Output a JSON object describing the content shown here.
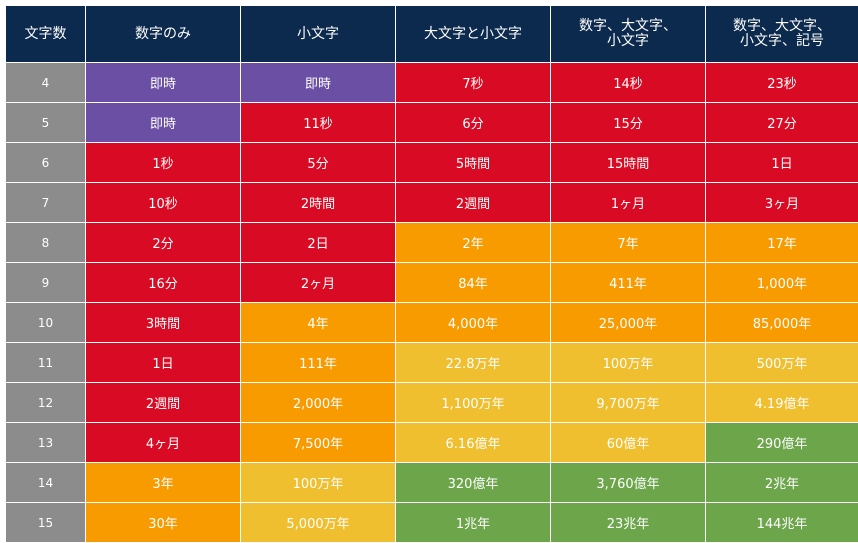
{
  "colors": {
    "header": "#0c2a4e",
    "length_column": "#8c8c8c",
    "instant": "#6a4fa5",
    "red": "#d90b24",
    "orange": "#f79b00",
    "yellow": "#efbf2f",
    "green": "#6ca54a"
  },
  "table": {
    "headers": [
      {
        "lines": [
          "文字数"
        ]
      },
      {
        "lines": [
          "数字のみ"
        ]
      },
      {
        "lines": [
          "小文字"
        ]
      },
      {
        "lines": [
          "大文字と小文字"
        ]
      },
      {
        "lines": [
          "数字、大文字、",
          "小文字"
        ]
      },
      {
        "lines": [
          "数字、大文字、",
          "小文字、記号"
        ]
      }
    ],
    "rows": [
      {
        "length": "4",
        "cells": [
          {
            "text": "即時",
            "level": "instant"
          },
          {
            "text": "即時",
            "level": "instant"
          },
          {
            "text": "7秒",
            "level": "red"
          },
          {
            "text": "14秒",
            "level": "red"
          },
          {
            "text": "23秒",
            "level": "red"
          }
        ]
      },
      {
        "length": "5",
        "cells": [
          {
            "text": "即時",
            "level": "instant"
          },
          {
            "text": "11秒",
            "level": "red"
          },
          {
            "text": "6分",
            "level": "red"
          },
          {
            "text": "15分",
            "level": "red"
          },
          {
            "text": "27分",
            "level": "red"
          }
        ]
      },
      {
        "length": "6",
        "cells": [
          {
            "text": "1秒",
            "level": "red"
          },
          {
            "text": "5分",
            "level": "red"
          },
          {
            "text": "5時間",
            "level": "red"
          },
          {
            "text": "15時間",
            "level": "red"
          },
          {
            "text": "1日",
            "level": "red"
          }
        ]
      },
      {
        "length": "7",
        "cells": [
          {
            "text": "10秒",
            "level": "red"
          },
          {
            "text": "2時間",
            "level": "red"
          },
          {
            "text": "2週間",
            "level": "red"
          },
          {
            "text": "1ヶ月",
            "level": "red"
          },
          {
            "text": "3ヶ月",
            "level": "red"
          }
        ]
      },
      {
        "length": "8",
        "cells": [
          {
            "text": "2分",
            "level": "red"
          },
          {
            "text": "2日",
            "level": "red"
          },
          {
            "text": "2年",
            "level": "orange"
          },
          {
            "text": "7年",
            "level": "orange"
          },
          {
            "text": "17年",
            "level": "orange"
          }
        ]
      },
      {
        "length": "9",
        "cells": [
          {
            "text": "16分",
            "level": "red"
          },
          {
            "text": "2ヶ月",
            "level": "red"
          },
          {
            "text": "84年",
            "level": "orange"
          },
          {
            "text": "411年",
            "level": "orange"
          },
          {
            "text": "1,000年",
            "level": "orange"
          }
        ]
      },
      {
        "length": "10",
        "cells": [
          {
            "text": "3時間",
            "level": "red"
          },
          {
            "text": "4年",
            "level": "orange"
          },
          {
            "text": "4,000年",
            "level": "orange"
          },
          {
            "text": "25,000年",
            "level": "orange"
          },
          {
            "text": "85,000年",
            "level": "orange"
          }
        ]
      },
      {
        "length": "11",
        "cells": [
          {
            "text": "1日",
            "level": "red"
          },
          {
            "text": "111年",
            "level": "orange"
          },
          {
            "text": "22.8万年",
            "level": "yellow"
          },
          {
            "text": "100万年",
            "level": "yellow"
          },
          {
            "text": "500万年",
            "level": "yellow"
          }
        ]
      },
      {
        "length": "12",
        "cells": [
          {
            "text": "2週間",
            "level": "red"
          },
          {
            "text": "2,000年",
            "level": "orange"
          },
          {
            "text": "1,100万年",
            "level": "yellow"
          },
          {
            "text": "9,700万年",
            "level": "yellow"
          },
          {
            "text": "4.19億年",
            "level": "yellow"
          }
        ]
      },
      {
        "length": "13",
        "cells": [
          {
            "text": "4ヶ月",
            "level": "red"
          },
          {
            "text": "7,500年",
            "level": "orange"
          },
          {
            "text": "6.16億年",
            "level": "yellow"
          },
          {
            "text": "60億年",
            "level": "yellow"
          },
          {
            "text": "290億年",
            "level": "green"
          }
        ]
      },
      {
        "length": "14",
        "cells": [
          {
            "text": "3年",
            "level": "orange"
          },
          {
            "text": "100万年",
            "level": "yellow"
          },
          {
            "text": "320億年",
            "level": "green"
          },
          {
            "text": "3,760億年",
            "level": "green"
          },
          {
            "text": "2兆年",
            "level": "green"
          }
        ]
      },
      {
        "length": "15",
        "cells": [
          {
            "text": "30年",
            "level": "orange"
          },
          {
            "text": "5,000万年",
            "level": "yellow"
          },
          {
            "text": "1兆年",
            "level": "green"
          },
          {
            "text": "23兆年",
            "level": "green"
          },
          {
            "text": "144兆年",
            "level": "green"
          }
        ]
      }
    ]
  }
}
